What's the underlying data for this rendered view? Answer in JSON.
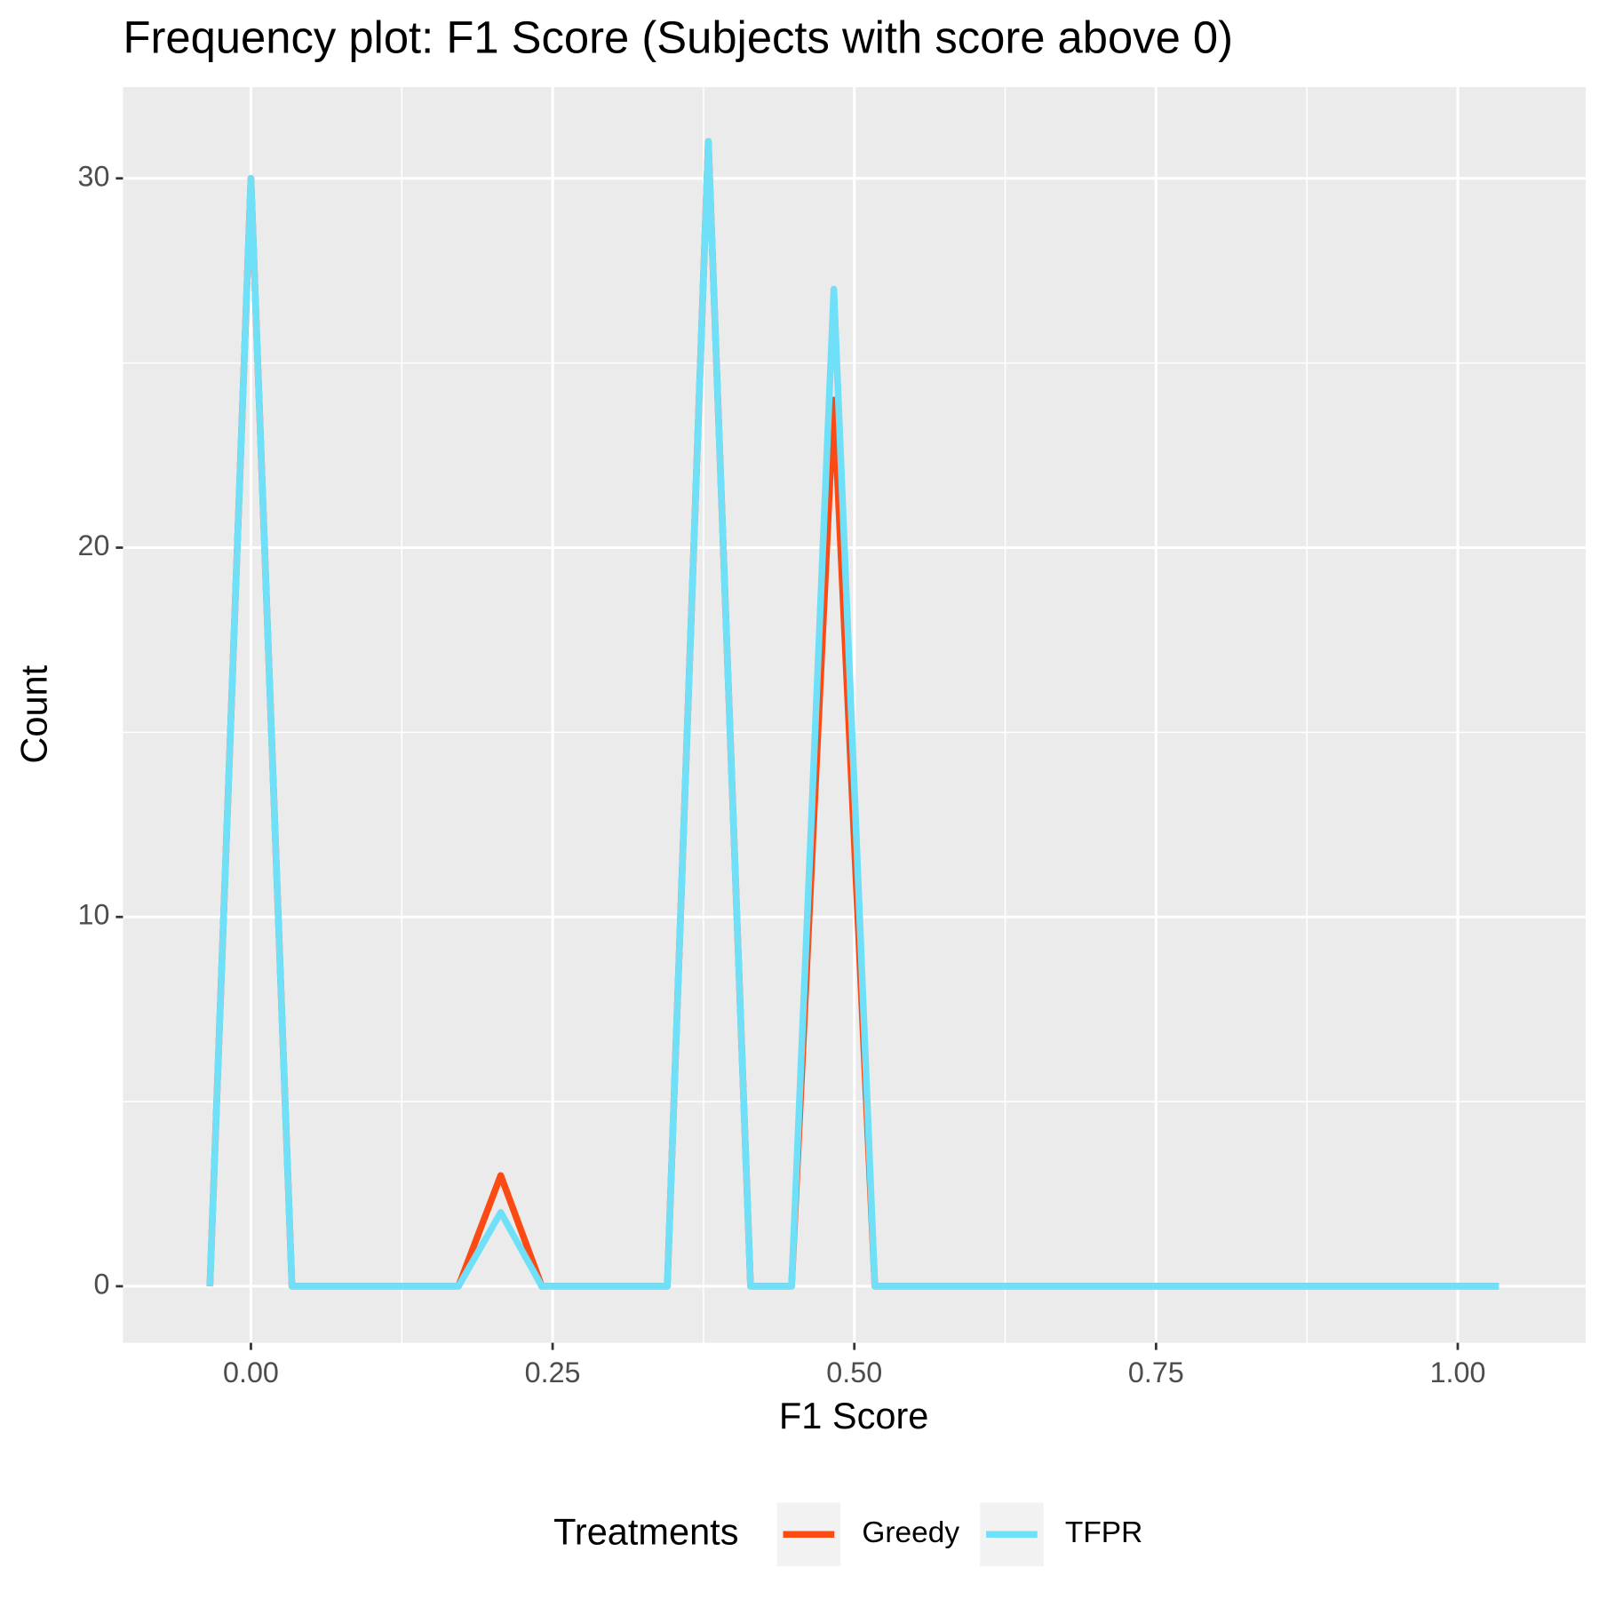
{
  "chart_data": {
    "type": "line",
    "title": "Frequency plot: F1 Score (Subjects with score above 0)",
    "x_label": "F1 Score",
    "y_label": "Count",
    "legend_title": "Treatments",
    "legend_position": "bottom",
    "x": [
      -0.034,
      0,
      0.034,
      0.069,
      0.103,
      0.138,
      0.172,
      0.207,
      0.241,
      0.276,
      0.31,
      0.345,
      0.379,
      0.414,
      0.448,
      0.483,
      0.517,
      0.552,
      0.586,
      0.621,
      0.655,
      0.69,
      0.724,
      0.759,
      0.793,
      0.828,
      0.862,
      0.897,
      0.931,
      0.966,
      1.0,
      1.034
    ],
    "series": [
      {
        "name": "Greedy",
        "color": "#FC4A14",
        "values": [
          0,
          30,
          0,
          0,
          0,
          0,
          0,
          3,
          0,
          0,
          0,
          0,
          31,
          0,
          0,
          24,
          0,
          0,
          0,
          0,
          0,
          0,
          0,
          0,
          0,
          0,
          0,
          0,
          0,
          0,
          0,
          0
        ]
      },
      {
        "name": "TFPR",
        "color": "#6FE0F8",
        "values": [
          0,
          30,
          0,
          0,
          0,
          0,
          0,
          2,
          0,
          0,
          0,
          0,
          31,
          0,
          0,
          27,
          0,
          0,
          0,
          0,
          0,
          0,
          0,
          0,
          0,
          0,
          0,
          0,
          0,
          0,
          0,
          0
        ]
      }
    ],
    "xlim": [
      -0.106,
      1.106
    ],
    "ylim": [
      -1.53,
      32.47
    ],
    "xticks": [
      {
        "value": 0,
        "label": "0.00"
      },
      {
        "value": 0.25,
        "label": "0.25"
      },
      {
        "value": 0.5,
        "label": "0.50"
      },
      {
        "value": 0.75,
        "label": "0.75"
      },
      {
        "value": 1,
        "label": "1.00"
      }
    ],
    "yticks": [
      0,
      10,
      20,
      30
    ],
    "xminor": [
      0.125,
      0.375,
      0.625,
      0.875
    ],
    "yminor": [
      5,
      15,
      25
    ],
    "grid": true
  }
}
